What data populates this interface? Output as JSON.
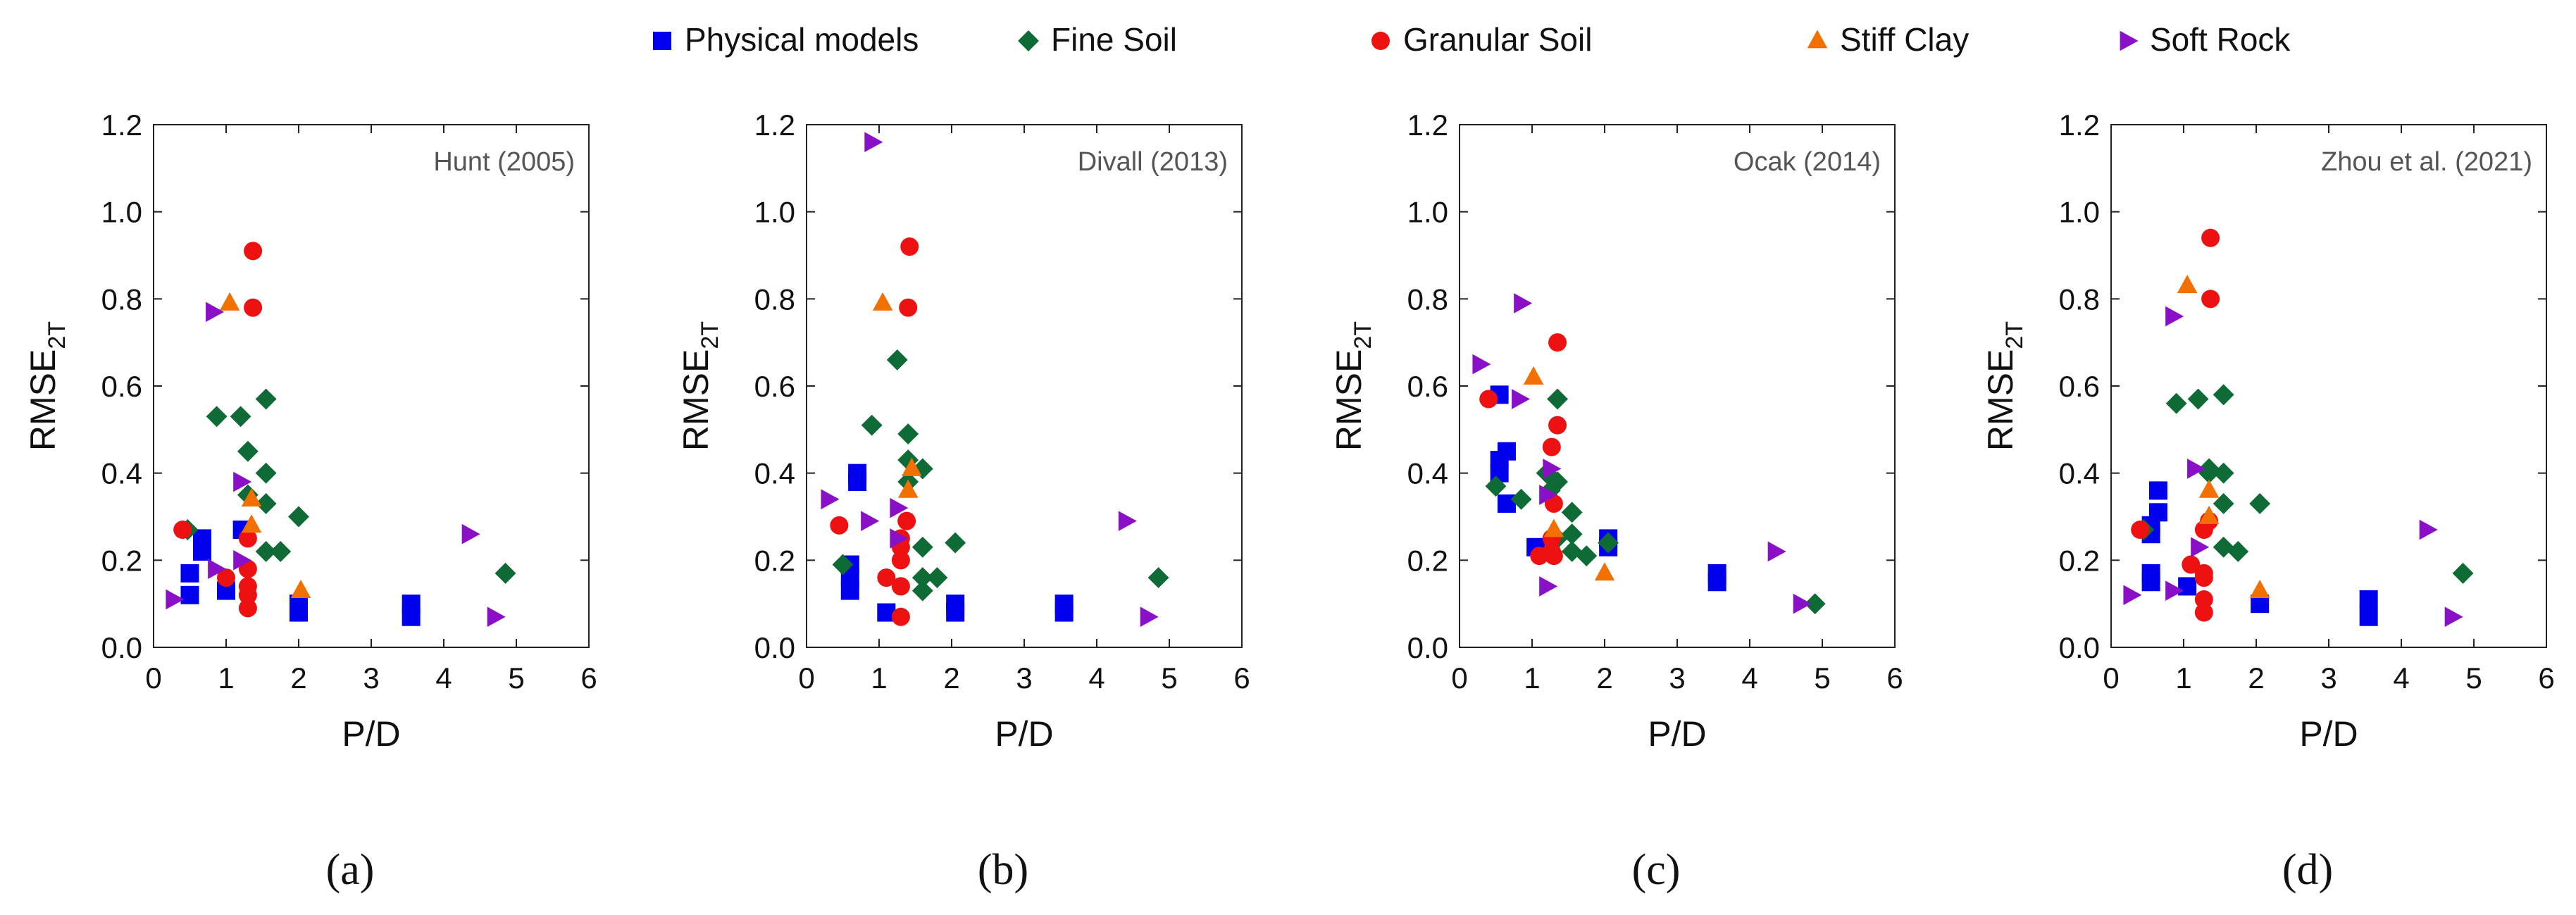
{
  "legend": [
    {
      "key": "physical",
      "label": "Physical models",
      "marker": "square",
      "color": "#0000ee"
    },
    {
      "key": "fine",
      "label": "Fine Soil",
      "marker": "diamond",
      "color": "#0f6b35"
    },
    {
      "key": "granular",
      "label": "Granular Soil",
      "marker": "circle",
      "color": "#ee1111"
    },
    {
      "key": "stiff",
      "label": "Stiff Clay",
      "marker": "triangle-up",
      "color": "#f27000"
    },
    {
      "key": "rock",
      "label": "Soft Rock",
      "marker": "triangle-right",
      "color": "#8a10c8"
    }
  ],
  "chart_data": [
    {
      "type": "scatter",
      "panel_label": "(a)",
      "title": "Hunt (2005)",
      "xlabel": "P/D",
      "ylabel": "RMSE",
      "ylabel_sub": "2T",
      "xlim": [
        0,
        6
      ],
      "ylim": [
        0,
        1.2
      ],
      "xticks": [
        "0",
        "1",
        "2",
        "3",
        "4",
        "5",
        "6"
      ],
      "yticks": [
        "0.0",
        "0.2",
        "0.4",
        "0.6",
        "0.8",
        "1.0",
        "1.2"
      ],
      "series": [
        {
          "name": "Physical models",
          "points": [
            [
              0.5,
              0.12
            ],
            [
              0.5,
              0.17
            ],
            [
              0.67,
              0.22
            ],
            [
              0.67,
              0.25
            ],
            [
              1.0,
              0.13
            ],
            [
              1.22,
              0.27
            ],
            [
              2.0,
              0.08
            ],
            [
              2.0,
              0.1
            ],
            [
              3.55,
              0.07
            ],
            [
              3.55,
              0.1
            ]
          ]
        },
        {
          "name": "Fine Soil",
          "points": [
            [
              0.47,
              0.27
            ],
            [
              0.87,
              0.53
            ],
            [
              1.2,
              0.53
            ],
            [
              1.3,
              0.45
            ],
            [
              1.3,
              0.35
            ],
            [
              1.55,
              0.57
            ],
            [
              1.55,
              0.4
            ],
            [
              1.55,
              0.33
            ],
            [
              1.55,
              0.22
            ],
            [
              1.75,
              0.22
            ],
            [
              2.0,
              0.3
            ],
            [
              4.85,
              0.17
            ]
          ]
        },
        {
          "name": "Granular Soil",
          "points": [
            [
              0.4,
              0.27
            ],
            [
              1.0,
              0.16
            ],
            [
              1.3,
              0.25
            ],
            [
              1.3,
              0.18
            ],
            [
              1.3,
              0.14
            ],
            [
              1.3,
              0.12
            ],
            [
              1.3,
              0.09
            ],
            [
              1.37,
              0.78
            ],
            [
              1.37,
              0.91
            ]
          ]
        },
        {
          "name": "Stiff Clay",
          "points": [
            [
              1.05,
              0.79
            ],
            [
              1.35,
              0.34
            ],
            [
              1.35,
              0.28
            ],
            [
              2.03,
              0.13
            ]
          ]
        },
        {
          "name": "Soft Rock",
          "points": [
            [
              0.27,
              0.11
            ],
            [
              0.82,
              0.77
            ],
            [
              0.85,
              0.18
            ],
            [
              1.2,
              0.38
            ],
            [
              1.2,
              0.2
            ],
            [
              4.35,
              0.26
            ],
            [
              4.7,
              0.07
            ]
          ]
        }
      ]
    },
    {
      "type": "scatter",
      "panel_label": "(b)",
      "title": "Divall (2013)",
      "xlabel": "P/D",
      "ylabel": "RMSE",
      "ylabel_sub": "2T",
      "xlim": [
        0,
        6
      ],
      "ylim": [
        0,
        1.2
      ],
      "xticks": [
        "0",
        "1",
        "2",
        "3",
        "4",
        "5",
        "6"
      ],
      "yticks": [
        "0.0",
        "0.2",
        "0.4",
        "0.6",
        "0.8",
        "1.0",
        "1.2"
      ],
      "series": [
        {
          "name": "Physical models",
          "points": [
            [
              0.6,
              0.13
            ],
            [
              0.6,
              0.16
            ],
            [
              0.6,
              0.19
            ],
            [
              0.7,
              0.38
            ],
            [
              0.7,
              0.4
            ],
            [
              1.1,
              0.08
            ],
            [
              2.05,
              0.08
            ],
            [
              2.05,
              0.1
            ],
            [
              3.55,
              0.08
            ],
            [
              3.55,
              0.1
            ]
          ]
        },
        {
          "name": "Fine Soil",
          "points": [
            [
              0.5,
              0.19
            ],
            [
              0.9,
              0.51
            ],
            [
              1.25,
              0.66
            ],
            [
              1.4,
              0.49
            ],
            [
              1.4,
              0.43
            ],
            [
              1.4,
              0.38
            ],
            [
              1.6,
              0.41
            ],
            [
              1.6,
              0.23
            ],
            [
              1.6,
              0.16
            ],
            [
              1.6,
              0.13
            ],
            [
              1.8,
              0.16
            ],
            [
              2.05,
              0.24
            ],
            [
              4.85,
              0.16
            ]
          ]
        },
        {
          "name": "Granular Soil",
          "points": [
            [
              0.45,
              0.28
            ],
            [
              1.1,
              0.16
            ],
            [
              1.3,
              0.25
            ],
            [
              1.3,
              0.23
            ],
            [
              1.3,
              0.2
            ],
            [
              1.3,
              0.14
            ],
            [
              1.3,
              0.07
            ],
            [
              1.38,
              0.29
            ],
            [
              1.4,
              0.78
            ],
            [
              1.42,
              0.92
            ]
          ]
        },
        {
          "name": "Stiff Clay",
          "points": [
            [
              1.05,
              0.79
            ],
            [
              1.4,
              0.36
            ],
            [
              1.45,
              0.41
            ]
          ]
        },
        {
          "name": "Soft Rock",
          "points": [
            [
              0.3,
              0.34
            ],
            [
              0.85,
              0.29
            ],
            [
              0.9,
              1.16
            ],
            [
              1.25,
              0.25
            ],
            [
              1.25,
              0.32
            ],
            [
              4.4,
              0.29
            ],
            [
              4.7,
              0.07
            ]
          ]
        }
      ]
    },
    {
      "type": "scatter",
      "panel_label": "(c)",
      "title": "Ocak (2014)",
      "xlabel": "P/D",
      "ylabel": "RMSE",
      "ylabel_sub": "2T",
      "xlim": [
        0,
        6
      ],
      "ylim": [
        0,
        1.2
      ],
      "xticks": [
        "0",
        "1",
        "2",
        "3",
        "4",
        "5",
        "6"
      ],
      "yticks": [
        "0.0",
        "0.2",
        "0.4",
        "0.6",
        "0.8",
        "1.0",
        "1.2"
      ],
      "series": [
        {
          "name": "Physical models",
          "points": [
            [
              0.55,
              0.4
            ],
            [
              0.55,
              0.43
            ],
            [
              0.55,
              0.58
            ],
            [
              0.65,
              0.33
            ],
            [
              0.65,
              0.45
            ],
            [
              1.05,
              0.23
            ],
            [
              2.05,
              0.23
            ],
            [
              2.05,
              0.25
            ],
            [
              3.55,
              0.15
            ],
            [
              3.55,
              0.17
            ]
          ]
        },
        {
          "name": "Fine Soil",
          "points": [
            [
              0.5,
              0.37
            ],
            [
              0.85,
              0.34
            ],
            [
              1.2,
              0.4
            ],
            [
              1.25,
              0.36
            ],
            [
              1.35,
              0.57
            ],
            [
              1.35,
              0.38
            ],
            [
              1.35,
              0.25
            ],
            [
              1.55,
              0.31
            ],
            [
              1.55,
              0.26
            ],
            [
              1.55,
              0.22
            ],
            [
              1.75,
              0.21
            ],
            [
              2.05,
              0.24
            ],
            [
              4.9,
              0.1
            ]
          ]
        },
        {
          "name": "Granular Soil",
          "points": [
            [
              0.4,
              0.57
            ],
            [
              1.1,
              0.21
            ],
            [
              1.27,
              0.25
            ],
            [
              1.27,
              0.22
            ],
            [
              1.27,
              0.46
            ],
            [
              1.3,
              0.33
            ],
            [
              1.3,
              0.21
            ],
            [
              1.35,
              0.7
            ],
            [
              1.35,
              0.51
            ]
          ]
        },
        {
          "name": "Stiff Clay",
          "points": [
            [
              1.02,
              0.62
            ],
            [
              1.3,
              0.27
            ],
            [
              2.0,
              0.17
            ]
          ]
        },
        {
          "name": "Soft Rock",
          "points": [
            [
              0.28,
              0.65
            ],
            [
              0.82,
              0.57
            ],
            [
              0.85,
              0.79
            ],
            [
              1.2,
              0.35
            ],
            [
              1.2,
              0.14
            ],
            [
              1.25,
              0.41
            ],
            [
              4.35,
              0.22
            ],
            [
              4.7,
              0.1
            ]
          ]
        }
      ]
    },
    {
      "type": "scatter",
      "panel_label": "(d)",
      "title": "Zhou et al. (2021)",
      "xlabel": "P/D",
      "ylabel": "RMSE",
      "ylabel_sub": "2T",
      "xlim": [
        0,
        6
      ],
      "ylim": [
        0,
        1.2
      ],
      "xticks": [
        "0",
        "1",
        "2",
        "3",
        "4",
        "5",
        "6"
      ],
      "yticks": [
        "0.0",
        "0.2",
        "0.4",
        "0.6",
        "0.8",
        "1.0",
        "1.2"
      ],
      "series": [
        {
          "name": "Physical models",
          "points": [
            [
              0.55,
              0.15
            ],
            [
              0.55,
              0.17
            ],
            [
              0.55,
              0.26
            ],
            [
              0.55,
              0.28
            ],
            [
              0.65,
              0.31
            ],
            [
              0.65,
              0.36
            ],
            [
              1.05,
              0.14
            ],
            [
              2.05,
              0.1
            ],
            [
              3.55,
              0.07
            ],
            [
              3.55,
              0.11
            ]
          ]
        },
        {
          "name": "Fine Soil",
          "points": [
            [
              0.45,
              0.27
            ],
            [
              0.9,
              0.56
            ],
            [
              1.2,
              0.57
            ],
            [
              1.35,
              0.41
            ],
            [
              1.35,
              0.4
            ],
            [
              1.55,
              0.58
            ],
            [
              1.55,
              0.4
            ],
            [
              1.55,
              0.33
            ],
            [
              1.55,
              0.23
            ],
            [
              1.75,
              0.22
            ],
            [
              2.05,
              0.33
            ],
            [
              4.85,
              0.17
            ]
          ]
        },
        {
          "name": "Granular Soil",
          "points": [
            [
              0.4,
              0.27
            ],
            [
              1.1,
              0.19
            ],
            [
              1.28,
              0.27
            ],
            [
              1.28,
              0.17
            ],
            [
              1.28,
              0.16
            ],
            [
              1.28,
              0.11
            ],
            [
              1.28,
              0.08
            ],
            [
              1.35,
              0.29
            ],
            [
              1.37,
              0.8
            ],
            [
              1.37,
              0.94
            ]
          ]
        },
        {
          "name": "Stiff Clay",
          "points": [
            [
              1.05,
              0.83
            ],
            [
              1.35,
              0.36
            ],
            [
              1.35,
              0.3
            ],
            [
              2.05,
              0.13
            ]
          ]
        },
        {
          "name": "Soft Rock",
          "points": [
            [
              0.27,
              0.12
            ],
            [
              0.85,
              0.76
            ],
            [
              0.85,
              0.13
            ],
            [
              1.15,
              0.41
            ],
            [
              1.2,
              0.23
            ],
            [
              4.35,
              0.27
            ],
            [
              4.7,
              0.07
            ]
          ]
        }
      ]
    }
  ]
}
